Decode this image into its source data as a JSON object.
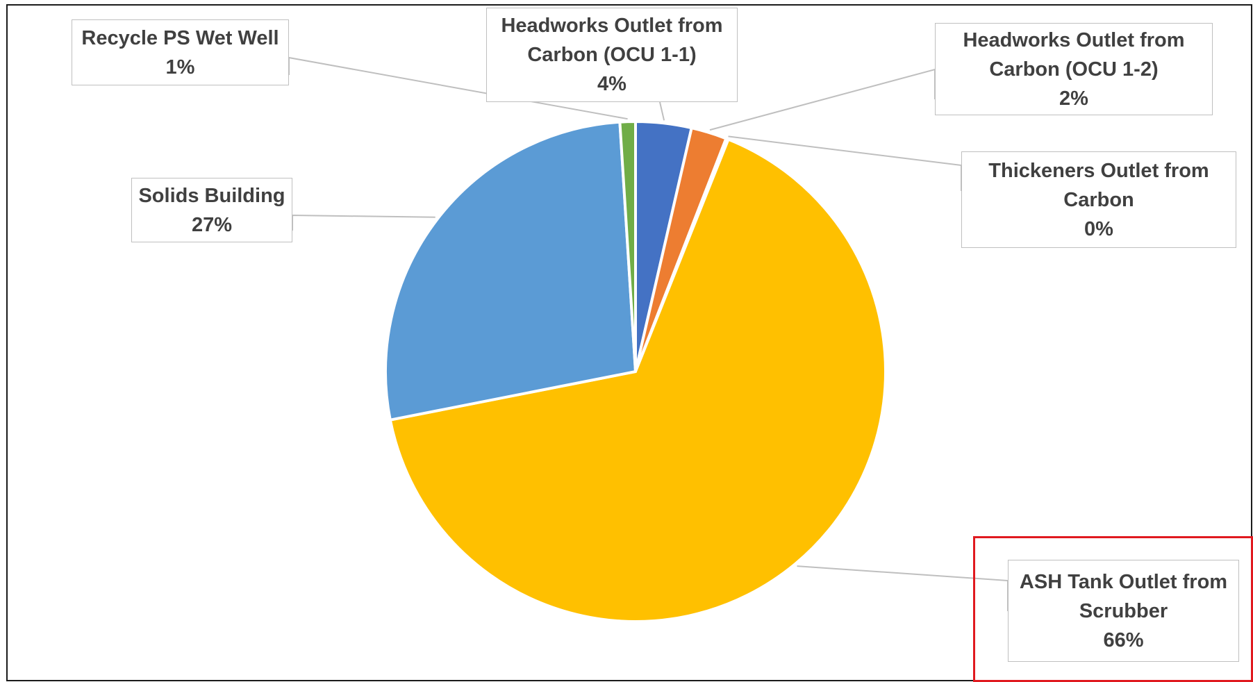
{
  "chart_data": {
    "type": "pie",
    "title": "",
    "start_angle_deg": 0,
    "slices": [
      {
        "label": "Headworks Outlet from Carbon (OCU 1-1)",
        "value": 3.6,
        "value_label": "4%",
        "color": "#4472c4",
        "label_lines": [
          "Headworks Outlet from",
          "Carbon (OCU 1-1)",
          "4%"
        ]
      },
      {
        "label": "Headworks Outlet from Carbon (OCU 1-2)",
        "value": 2.3,
        "value_label": "2%",
        "color": "#ed7d31",
        "label_lines": [
          "Headworks Outlet from",
          "Carbon (OCU 1-2)",
          "2%"
        ]
      },
      {
        "label": "Thickeners Outlet from Carbon",
        "value": 0.15,
        "value_label": "0%",
        "color": "#a5a5a5",
        "label_lines": [
          "Thickeners Outlet from",
          "Carbon",
          "0%"
        ]
      },
      {
        "label": "ASH Tank Outlet from Scrubber",
        "value": 65.85,
        "value_label": "66%",
        "color": "#ffc000",
        "label_lines": [
          "ASH Tank Outlet from",
          "Scrubber",
          "66%"
        ]
      },
      {
        "label": "Solids Building",
        "value": 27.1,
        "value_label": "27%",
        "color": "#5b9bd5",
        "label_lines": [
          "Solids Building",
          "27%"
        ]
      },
      {
        "label": "Recycle PS Wet Well",
        "value": 1.0,
        "value_label": "1%",
        "color": "#70ad47",
        "label_lines": [
          "Recycle PS Wet Well",
          "1%"
        ]
      }
    ],
    "highlighted_slice": "ASH Tank Outlet from Scrubber",
    "highlight_color": "#e0191f",
    "leader_line_color": "#bfbfbf",
    "slice_border_color": "#ffffff"
  }
}
